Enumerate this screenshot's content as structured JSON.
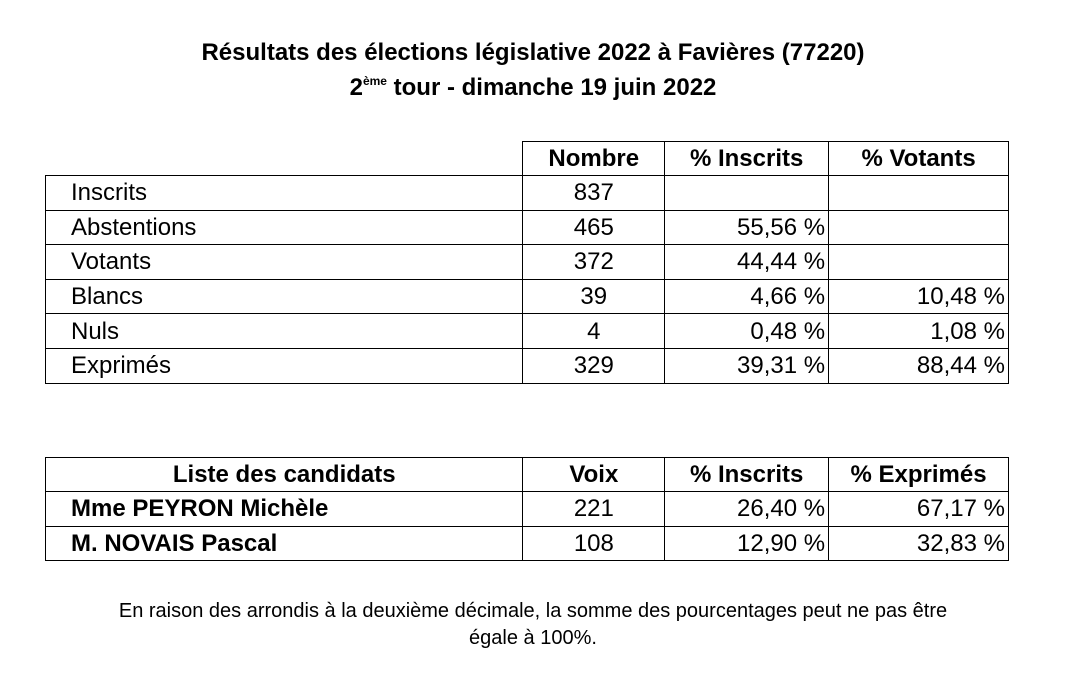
{
  "title": {
    "line1": "Résultats des élections législative 2022 à Favières (77220)",
    "line2_ordinal": "2",
    "line2_sup": "ème",
    "line2_rest": " tour - dimanche 19 juin 2022"
  },
  "stats_table": {
    "headers": [
      "Nombre",
      "% Inscrits",
      "% Votants"
    ],
    "rows": [
      {
        "label": "Inscrits",
        "nombre": "837",
        "pct_inscrits": "",
        "pct_votants": ""
      },
      {
        "label": "Abstentions",
        "nombre": "465",
        "pct_inscrits": "55,56 %",
        "pct_votants": ""
      },
      {
        "label": "Votants",
        "nombre": "372",
        "pct_inscrits": "44,44 %",
        "pct_votants": ""
      },
      {
        "label": "Blancs",
        "nombre": "39",
        "pct_inscrits": "4,66 %",
        "pct_votants": "10,48 %"
      },
      {
        "label": "Nuls",
        "nombre": "4",
        "pct_inscrits": "0,48 %",
        "pct_votants": "1,08 %"
      },
      {
        "label": "Exprimés",
        "nombre": "329",
        "pct_inscrits": "39,31 %",
        "pct_votants": "88,44 %"
      }
    ]
  },
  "candidates_table": {
    "headers": [
      "Liste des candidats",
      "Voix",
      "% Inscrits",
      "% Exprimés"
    ],
    "rows": [
      {
        "name": "Mme PEYRON Michèle",
        "voix": "221",
        "pct_inscrits": "26,40 %",
        "pct_exprimes": "67,17 %"
      },
      {
        "name": "M. NOVAIS Pascal",
        "voix": "108",
        "pct_inscrits": "12,90 %",
        "pct_exprimes": "32,83 %"
      }
    ]
  },
  "note": {
    "line1": "En raison des arrondis à la deuxième décimale, la somme des pourcentages peut ne pas être",
    "line2": "égale à 100%."
  }
}
